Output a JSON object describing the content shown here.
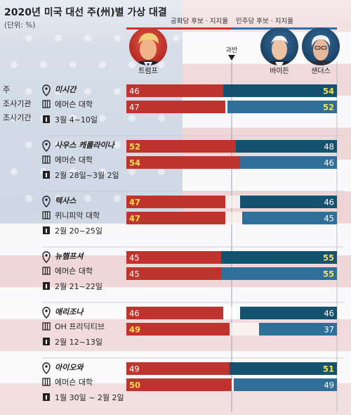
{
  "header": {
    "title": "2020년 미국 대선 주(州)별 가상 대결",
    "unit": "(단위: %)"
  },
  "legend": {
    "rep": "공화당 후보 · 지지율",
    "dem": "민주당 후보 · 지지율",
    "majority": "과반"
  },
  "candidates": {
    "trump": "트럼프",
    "biden": "바이든",
    "sanders": "샌더스"
  },
  "row_labels": [
    "주",
    "조사기관",
    "조사기간"
  ],
  "colors": {
    "rep": "#c0342f",
    "biden": "#15526f",
    "sanders": "#2f6f9a",
    "highlight": "#ffe14d",
    "plain": "#ffffff",
    "title_rep": "#d2322d",
    "title_dem": "#2b6fb3"
  },
  "chart_data": {
    "type": "bar",
    "title": "2020년 미국 대선 주(州)별 가상 대결",
    "unit": "(단위: %)",
    "xlim": [
      0,
      100
    ],
    "x_ticks": [
      0,
      50,
      100
    ],
    "reference_line": {
      "value": 50,
      "label": "과반"
    },
    "series_sides": {
      "rep": "left",
      "dem": "right"
    },
    "states": [
      {
        "state": "미시간",
        "pollster": "에머슨 대학",
        "period": "3월 4~10일",
        "matchups": [
          {
            "opponent": "바이든",
            "rep": 46,
            "dem": 54,
            "winner": "dem"
          },
          {
            "opponent": "샌더스",
            "rep": 47,
            "dem": 52,
            "winner": "dem"
          }
        ]
      },
      {
        "state": "사우스 캐롤라이나",
        "pollster": "에머슨 대학",
        "period": "2월 28일~3월 2일",
        "matchups": [
          {
            "opponent": "바이든",
            "rep": 52,
            "dem": 48,
            "winner": "rep"
          },
          {
            "opponent": "샌더스",
            "rep": 54,
            "dem": 46,
            "winner": "rep"
          }
        ]
      },
      {
        "state": "텍사스",
        "pollster": "퀴니피악 대학",
        "period": "2월 20~25일",
        "matchups": [
          {
            "opponent": "바이든",
            "rep": 47,
            "dem": 46,
            "winner": "rep"
          },
          {
            "opponent": "샌더스",
            "rep": 47,
            "dem": 45,
            "winner": "rep"
          }
        ]
      },
      {
        "state": "뉴햄프셔",
        "pollster": "에머슨 대학",
        "period": "2월 21~22일",
        "matchups": [
          {
            "opponent": "바이든",
            "rep": 45,
            "dem": 55,
            "winner": "dem"
          },
          {
            "opponent": "샌더스",
            "rep": 45,
            "dem": 55,
            "winner": "dem"
          }
        ]
      },
      {
        "state": "애리조나",
        "pollster": "OH 프리딕티브",
        "period": "2월 12~13일",
        "matchups": [
          {
            "opponent": "바이든",
            "rep": 46,
            "dem": 46,
            "winner": "none"
          },
          {
            "opponent": "샌더스",
            "rep": 49,
            "dem": 37,
            "winner": "rep"
          }
        ]
      },
      {
        "state": "아이오와",
        "pollster": "에머슨 대학",
        "period": "1월 30일 ~ 2월 2일",
        "matchups": [
          {
            "opponent": "바이든",
            "rep": 49,
            "dem": 51,
            "winner": "dem"
          },
          {
            "opponent": "샌더스",
            "rep": 50,
            "dem": 49,
            "winner": "rep"
          }
        ]
      }
    ]
  }
}
